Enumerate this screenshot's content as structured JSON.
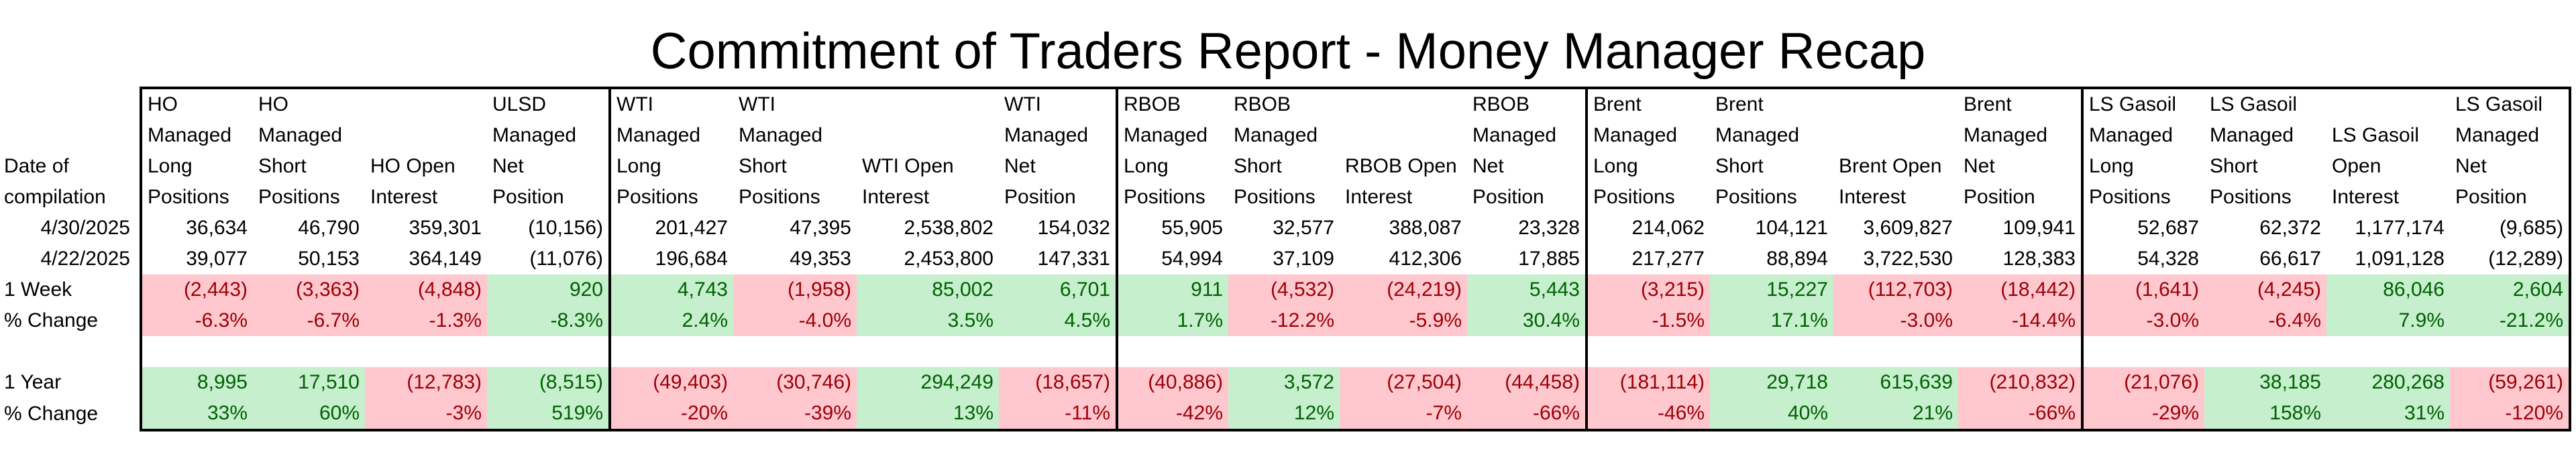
{
  "title": "Commitment of Traders Report - Money Manager Recap",
  "row_label_header": [
    "Date of",
    "compilation"
  ],
  "groups": [
    {
      "columns": [
        {
          "header": [
            "HO",
            "Managed",
            "Long",
            "Positions"
          ]
        },
        {
          "header": [
            "HO",
            "Managed",
            "Short",
            "Positions"
          ]
        },
        {
          "header": [
            "HO Open",
            "Interest"
          ]
        },
        {
          "header": [
            "ULSD",
            "Managed",
            "Net",
            "Position"
          ]
        }
      ]
    },
    {
      "columns": [
        {
          "header": [
            "WTI",
            "Managed",
            "Long",
            "Positions"
          ]
        },
        {
          "header": [
            "WTI",
            "Managed",
            "Short",
            "Positions"
          ]
        },
        {
          "header": [
            "WTI Open",
            "Interest"
          ]
        },
        {
          "header": [
            "WTI",
            "Managed",
            "Net",
            "Position"
          ]
        }
      ]
    },
    {
      "columns": [
        {
          "header": [
            "RBOB",
            "Managed",
            "Long",
            "Positions"
          ]
        },
        {
          "header": [
            "RBOB",
            "Managed",
            "Short",
            "Positions"
          ]
        },
        {
          "header": [
            "RBOB Open",
            "Interest"
          ]
        },
        {
          "header": [
            "RBOB",
            "Managed",
            "Net",
            "Position"
          ]
        }
      ]
    },
    {
      "columns": [
        {
          "header": [
            "Brent",
            "Managed",
            "Long",
            "Positions"
          ]
        },
        {
          "header": [
            "Brent",
            "Managed",
            "Short",
            "Positions"
          ]
        },
        {
          "header": [
            "Brent Open",
            "Interest"
          ]
        },
        {
          "header": [
            "Brent",
            "Managed",
            "Net",
            "Position"
          ]
        }
      ]
    },
    {
      "columns": [
        {
          "header": [
            "LS Gasoil",
            "Managed",
            "Long",
            "Positions"
          ]
        },
        {
          "header": [
            "LS Gasoil",
            "Managed",
            "Short",
            "Positions"
          ]
        },
        {
          "header": [
            "LS Gasoil",
            "Open",
            "Interest"
          ]
        },
        {
          "header": [
            "LS Gasoil",
            "Managed",
            "Net",
            "Position"
          ]
        }
      ]
    }
  ],
  "date_rows": [
    {
      "label": "4/30/2025",
      "values": [
        "36,634",
        "46,790",
        "359,301",
        "(10,156)",
        "201,427",
        "47,395",
        "2,538,802",
        "154,032",
        "55,905",
        "32,577",
        "388,087",
        "23,328",
        "214,062",
        "104,121",
        "3,609,827",
        "109,941",
        "52,687",
        "62,372",
        "1,177,174",
        "(9,685)"
      ]
    },
    {
      "label": "4/22/2025",
      "values": [
        "39,077",
        "50,153",
        "364,149",
        "(11,076)",
        "196,684",
        "49,353",
        "2,453,800",
        "147,331",
        "54,994",
        "37,109",
        "412,306",
        "17,885",
        "217,277",
        "88,894",
        "3,722,530",
        "128,383",
        "54,328",
        "66,617",
        "1,091,128",
        "(12,289)"
      ]
    }
  ],
  "change_sections": [
    {
      "change_label": "1 Week",
      "pct_label": "% Change",
      "changes": [
        "(2,443)",
        "(3,363)",
        "(4,848)",
        "920",
        "4,743",
        "(1,958)",
        "85,002",
        "6,701",
        "911",
        "(4,532)",
        "(24,219)",
        "5,443",
        "(3,215)",
        "15,227",
        "(112,703)",
        "(18,442)",
        "(1,641)",
        "(4,245)",
        "86,046",
        "2,604"
      ],
      "pcts": [
        "-6.3%",
        "-6.7%",
        "-1.3%",
        "-8.3%",
        "2.4%",
        "-4.0%",
        "3.5%",
        "4.5%",
        "1.7%",
        "-12.2%",
        "-5.9%",
        "30.4%",
        "-1.5%",
        "17.1%",
        "-3.0%",
        "-14.4%",
        "-3.0%",
        "-6.4%",
        "7.9%",
        "-21.2%"
      ],
      "signs": [
        "neg",
        "neg",
        "neg",
        "pos",
        "pos",
        "neg",
        "pos",
        "pos",
        "pos",
        "neg",
        "neg",
        "pos",
        "neg",
        "pos",
        "neg",
        "neg",
        "neg",
        "neg",
        "pos",
        "pos"
      ]
    },
    {
      "change_label": "1 Year",
      "pct_label": "% Change",
      "changes": [
        "8,995",
        "17,510",
        "(12,783)",
        "(8,515)",
        "(49,403)",
        "(30,746)",
        "294,249",
        "(18,657)",
        "(40,886)",
        "3,572",
        "(27,504)",
        "(44,458)",
        "(181,114)",
        "29,718",
        "615,639",
        "(210,832)",
        "(21,076)",
        "38,185",
        "280,268",
        "(59,261)"
      ],
      "pcts": [
        "33%",
        "60%",
        "-3%",
        "519%",
        "-20%",
        "-39%",
        "13%",
        "-11%",
        "-42%",
        "12%",
        "-7%",
        "-66%",
        "-46%",
        "40%",
        "21%",
        "-66%",
        "-29%",
        "158%",
        "31%",
        "-120%"
      ],
      "signs": [
        "pos",
        "pos",
        "neg",
        "pos",
        "neg",
        "neg",
        "pos",
        "neg",
        "neg",
        "pos",
        "neg",
        "neg",
        "neg",
        "pos",
        "pos",
        "neg",
        "neg",
        "pos",
        "pos",
        "neg"
      ]
    }
  ],
  "colors": {
    "positive_bg": "#c6efce",
    "positive_text": "#006100",
    "negative_bg": "#ffc7ce",
    "negative_text": "#9c0006",
    "border": "#000000"
  }
}
